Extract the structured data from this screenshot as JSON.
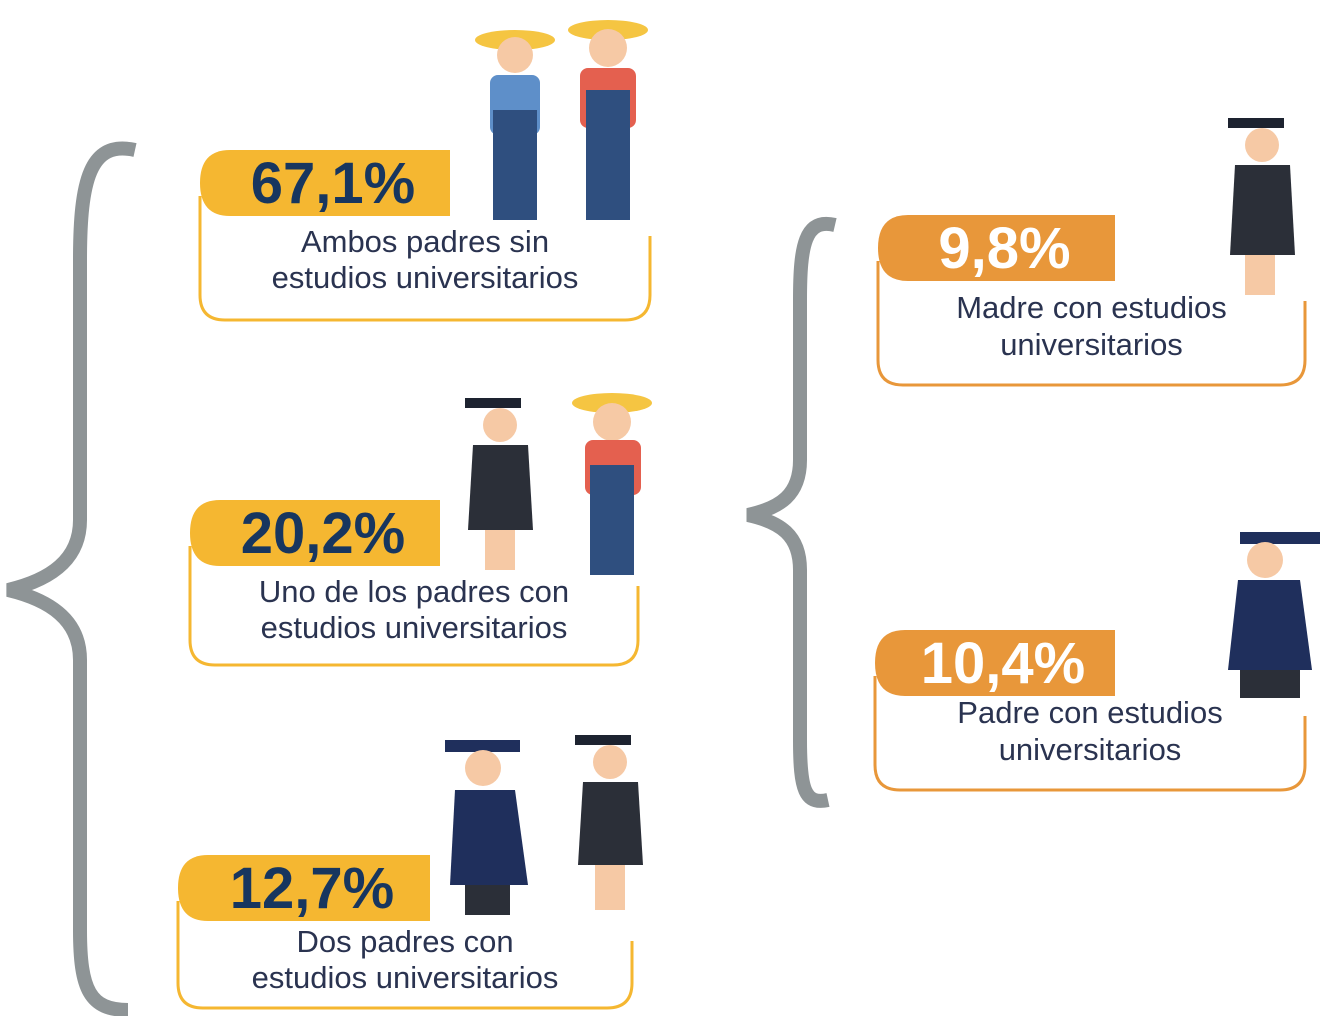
{
  "left": {
    "items": [
      {
        "percent": "67,1%",
        "lines": [
          "Ambos padres sin",
          "estudios universitarios"
        ]
      },
      {
        "percent": "20,2%",
        "lines": [
          "Uno de los padres con",
          "estudios universitarios"
        ]
      },
      {
        "percent": "12,7%",
        "lines": [
          "Dos padres con",
          "estudios universitarios"
        ]
      }
    ]
  },
  "right": {
    "items": [
      {
        "percent": "9,8%",
        "lines": [
          "Madre con estudios",
          "universitarios"
        ]
      },
      {
        "percent": "10,4%",
        "lines": [
          "Padre con estudios",
          "universitarios"
        ]
      }
    ]
  }
}
